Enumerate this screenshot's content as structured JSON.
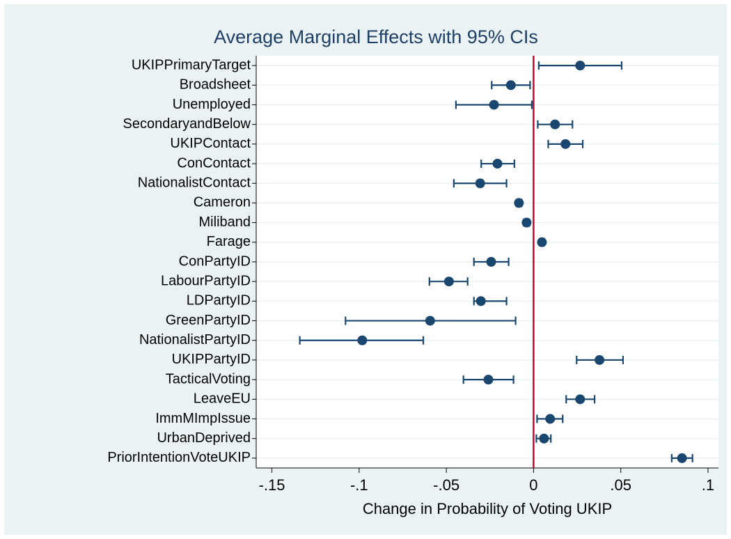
{
  "chart_data": {
    "type": "coefplot",
    "title": "Average Marginal Effects with 95% CIs",
    "x_label": "Change in Probability of Voting UKIP",
    "categories": [
      "UKIPPrimaryTarget",
      "Broadsheet",
      "Unemployed",
      "SecondaryandBelow",
      "UKIPContact",
      "ConContact",
      "NationalistContact",
      "Cameron",
      "Miliband",
      "Farage",
      "ConPartyID",
      "LabourPartyID",
      "LDPartyID",
      "GreenPartyID",
      "NationalistPartyID",
      "UKIPPartyID",
      "TacticalVoting",
      "LeaveEU",
      "ImmMImpIssue",
      "UrbanDeprived",
      "PriorIntentionVoteUKIP"
    ],
    "values": [
      0.0267,
      -0.013,
      -0.0227,
      0.0123,
      0.0183,
      -0.0207,
      -0.0306,
      -0.0084,
      -0.004,
      0.0048,
      -0.0243,
      -0.0485,
      -0.0302,
      -0.0593,
      -0.0982,
      0.0378,
      -0.0259,
      0.0267,
      0.0095,
      0.006,
      0.0851
    ],
    "ci_low": [
      0.003,
      -0.024,
      -0.0445,
      0.0024,
      0.0084,
      -0.03,
      -0.0457,
      -0.0099,
      -0.0055,
      0.0035,
      -0.0342,
      -0.0597,
      -0.0342,
      -0.1078,
      -0.134,
      0.0247,
      -0.0402,
      0.0187,
      0.002,
      0.0016,
      0.0792
    ],
    "ci_high": [
      0.0505,
      -0.002,
      -0.001,
      0.0223,
      0.0282,
      -0.011,
      -0.0155,
      -0.0068,
      -0.0025,
      0.0062,
      -0.0143,
      -0.0378,
      -0.0155,
      -0.0103,
      -0.0632,
      0.0513,
      -0.0115,
      0.035,
      0.0167,
      0.0099,
      0.0911
    ],
    "color": "#1a476f",
    "xline": 0,
    "xline_color": "#c10534",
    "xlim": [
      -0.159,
      0.106
    ],
    "xticks": [
      {
        "value": -0.15,
        "label": "-.15"
      },
      {
        "value": -0.1,
        "label": "-.1"
      },
      {
        "value": -0.05,
        "label": "-.05"
      },
      0,
      {
        "value": 0.05,
        "label": ".05"
      },
      {
        "value": 0.1,
        "label": ".1"
      }
    ],
    "grid": true
  }
}
